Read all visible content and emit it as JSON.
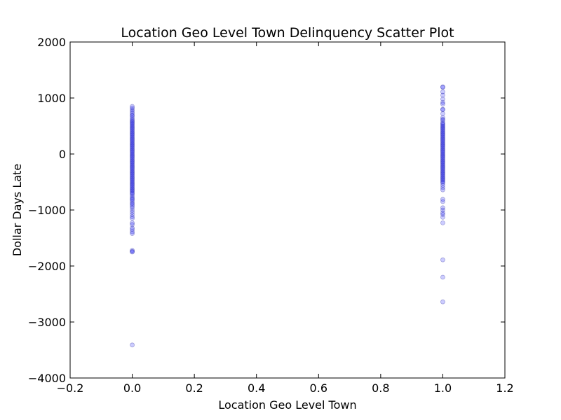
{
  "chart_data": {
    "type": "scatter",
    "title": "Location Geo Level Town Delinquency Scatter Plot",
    "xlabel": "Location Geo Level Town",
    "ylabel": "Dollar Days Late",
    "xlim": [
      -0.2,
      1.2
    ],
    "ylim": [
      -4000,
      2000
    ],
    "xticks": [
      -0.2,
      0.0,
      0.2,
      0.4,
      0.6,
      0.8,
      1.0,
      1.2
    ],
    "xtick_labels": [
      "−0.2",
      "0.0",
      "0.2",
      "0.4",
      "0.6",
      "0.8",
      "1.0",
      "1.2"
    ],
    "yticks": [
      -4000,
      -3000,
      -2000,
      -1000,
      0,
      1000,
      2000
    ],
    "ytick_labels": [
      "−4000",
      "−3000",
      "−2000",
      "−1000",
      "0",
      "1000",
      "2000"
    ],
    "grid": false,
    "marker_color": "#0000ff",
    "marker_alpha": 0.2,
    "series": [
      {
        "x": 0,
        "y": [
          850,
          820,
          790,
          760,
          730,
          700,
          680,
          650,
          620,
          600,
          580,
          560,
          540,
          520,
          500,
          480,
          460,
          440,
          420,
          400,
          380,
          360,
          340,
          320,
          300,
          280,
          260,
          240,
          220,
          200,
          180,
          160,
          140,
          120,
          100,
          80,
          60,
          40,
          20,
          0,
          -20,
          -40,
          -60,
          -80,
          -100,
          -120,
          -140,
          -160,
          -180,
          -200,
          -220,
          -240,
          -260,
          -280,
          -300,
          -320,
          -340,
          -360,
          -380,
          -400,
          -420,
          -440,
          -460,
          -480,
          -500,
          -520,
          -540,
          -560,
          -580,
          -600,
          -620,
          -640,
          -660,
          -680,
          -700,
          -720,
          -750,
          -780,
          -800,
          -820,
          -850,
          -880,
          -900,
          -930,
          -960,
          -1000,
          -1040,
          -1080,
          -1120,
          -1150,
          -1230,
          -1260,
          -1320,
          -1350,
          -1390,
          -1420,
          -1720,
          -1740,
          -1750,
          -3410
        ]
      },
      {
        "x": 1,
        "y": [
          1200,
          1190,
          1110,
          1050,
          980,
          920,
          890,
          800,
          790,
          720,
          650,
          620,
          600,
          560,
          540,
          520,
          500,
          480,
          460,
          440,
          420,
          400,
          380,
          360,
          340,
          320,
          300,
          280,
          260,
          240,
          220,
          200,
          180,
          160,
          140,
          120,
          100,
          80,
          60,
          40,
          20,
          0,
          -20,
          -40,
          -60,
          -80,
          -100,
          -120,
          -140,
          -160,
          -180,
          -200,
          -220,
          -240,
          -260,
          -280,
          -300,
          -320,
          -340,
          -360,
          -380,
          -400,
          -420,
          -440,
          -460,
          -480,
          -500,
          -520,
          -560,
          -600,
          -640,
          -810,
          -850,
          -960,
          -1000,
          -1050,
          -1080,
          -1130,
          -1230,
          -1890,
          -2200,
          -2640
        ]
      }
    ]
  }
}
